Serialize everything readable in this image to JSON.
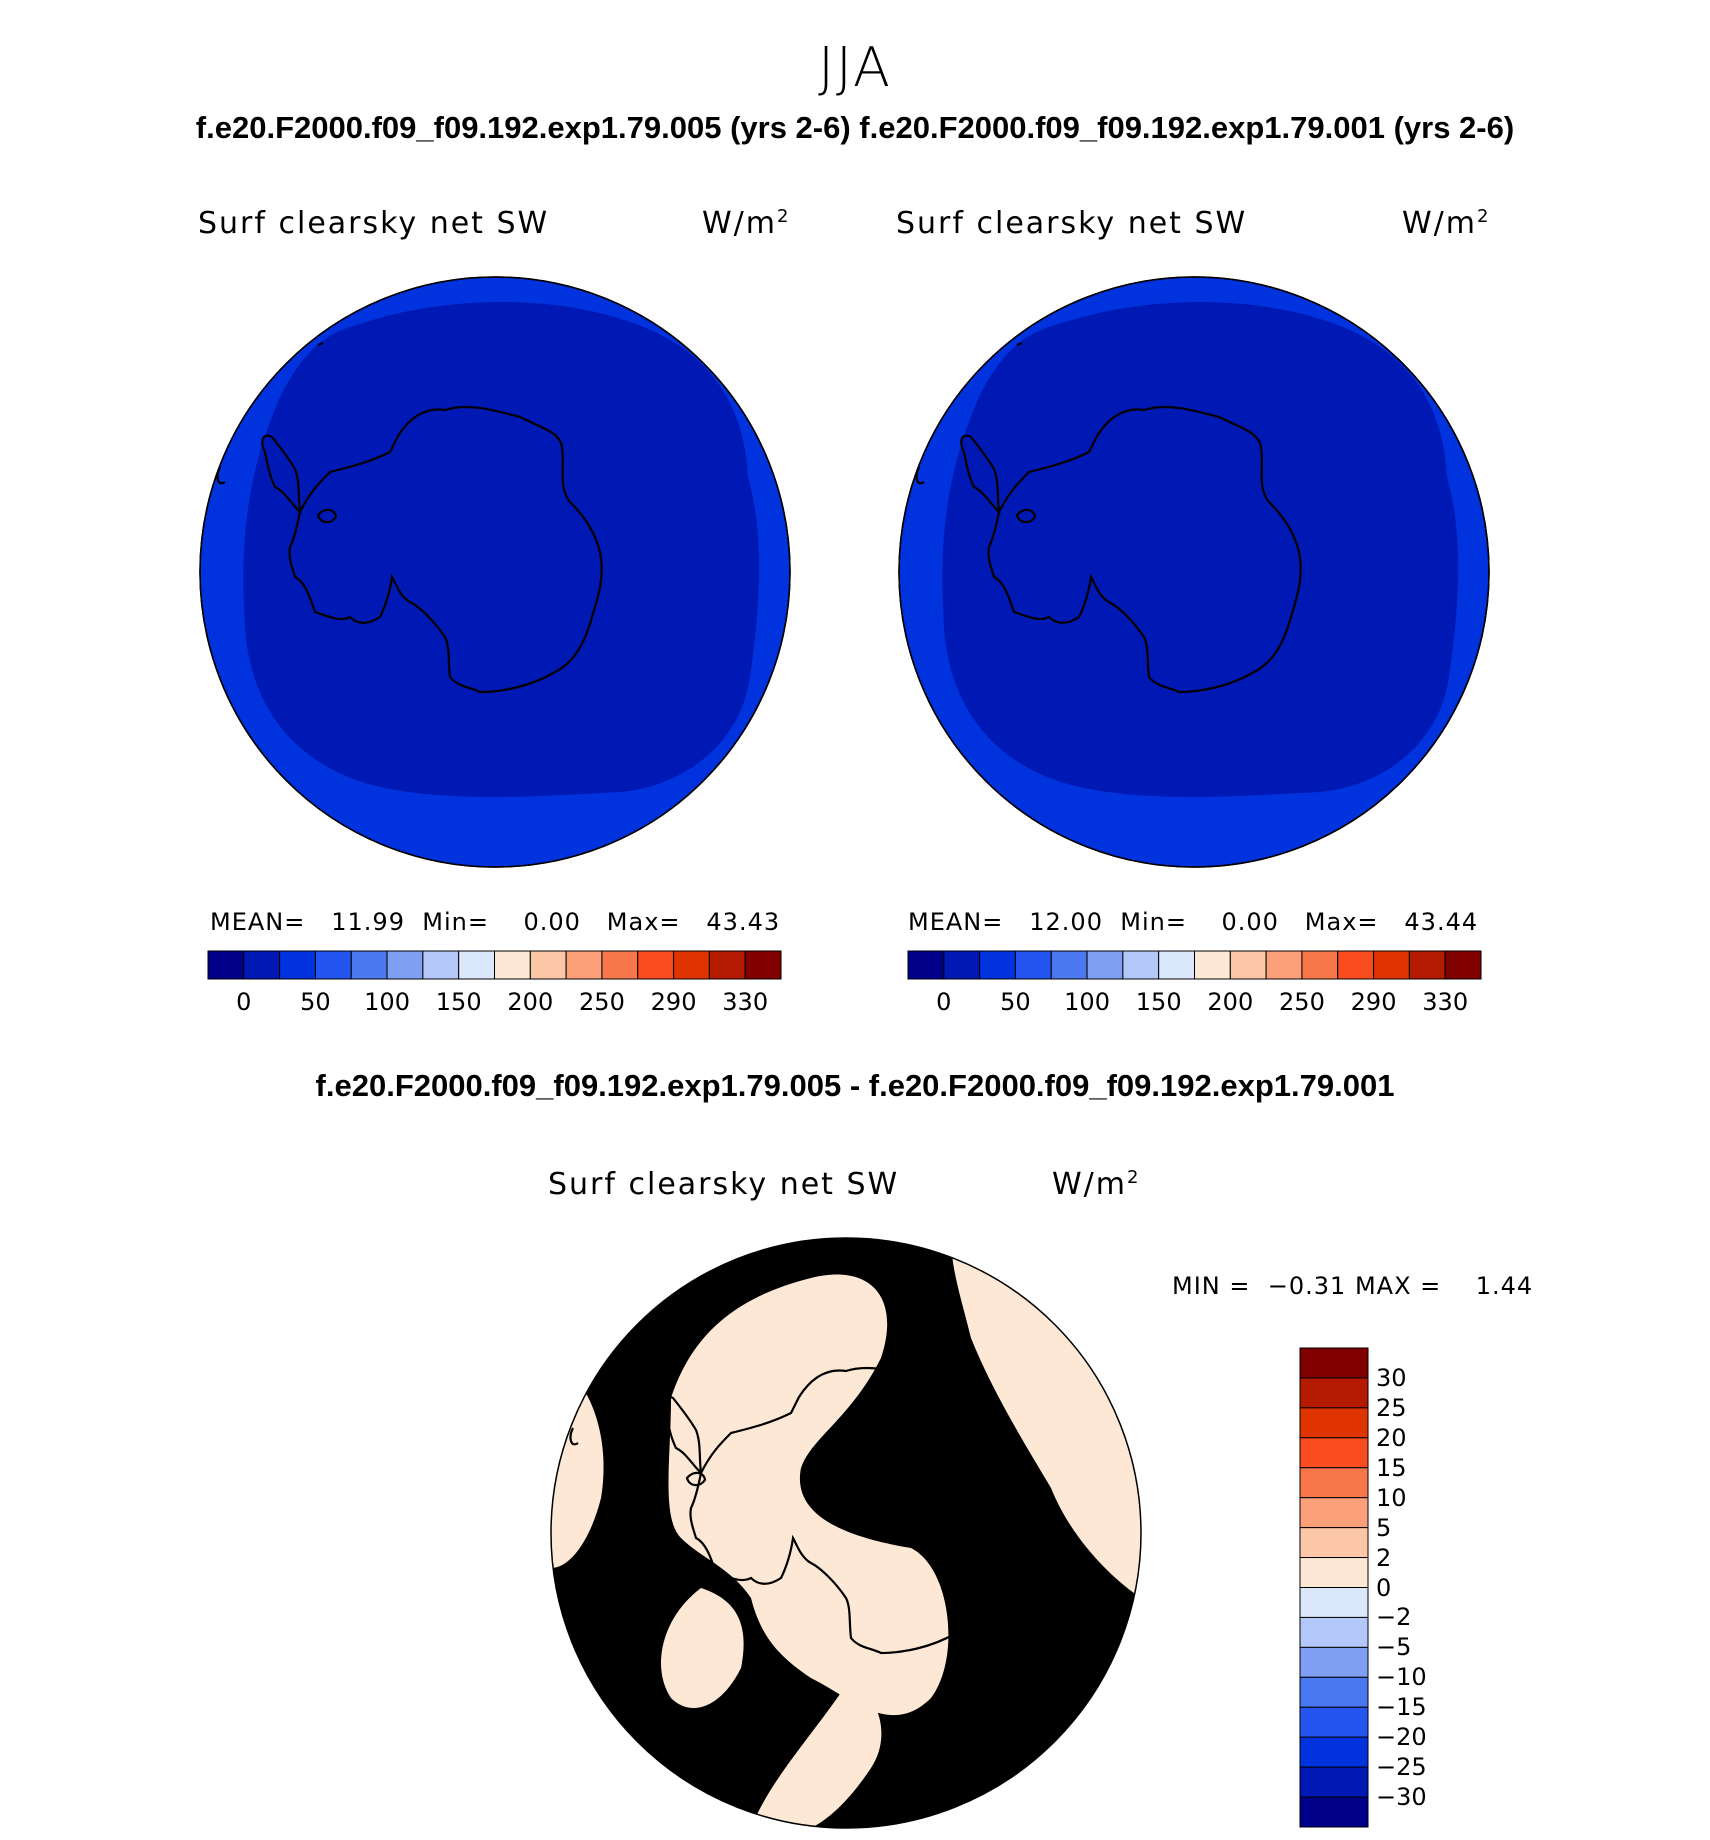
{
  "season": "JJA",
  "case_titles": "f.e20.F2000.f09_f09.192.exp1.79.005 (yrs 2-6) f.e20.F2000.f09_f09.192.exp1.79.001 (yrs 2-6)",
  "diff_title": "f.e20.F2000.f09_f09.192.exp1.79.005 - f.e20.F2000.f09_f09.192.exp1.79.001",
  "variable": "Surf clearsky net SW",
  "units": "W/m",
  "units_exp": "2",
  "panels": [
    {
      "mean": "11.99",
      "min": "0.00",
      "max": "43.43"
    },
    {
      "mean": "12.00",
      "min": "0.00",
      "max": "43.44"
    }
  ],
  "labels": {
    "mean": "MEAN=",
    "min": "Min=",
    "max": "Max=",
    "dmin": "MIN =",
    "dmax": "MAX ="
  },
  "diff_stats": {
    "min": "−0.31",
    "max": "1.44"
  },
  "abs_colorbar": {
    "colors": [
      "#00008b",
      "#0019b4",
      "#0033dd",
      "#2455ee",
      "#4a78f0",
      "#7f9ff5",
      "#b3c8f8",
      "#dbe8fb",
      "#fde8d5",
      "#fcc7a7",
      "#fca07a",
      "#f8774a",
      "#fa4d1f",
      "#df3400",
      "#b31a00",
      "#800000"
    ],
    "ticks": [
      "0",
      "50",
      "100",
      "150",
      "200",
      "250",
      "290",
      "330"
    ]
  },
  "diff_colorbar": {
    "colors": [
      "#800000",
      "#b31a00",
      "#df3400",
      "#fa4d1f",
      "#f8774a",
      "#fca07a",
      "#fcc7a7",
      "#fde8d5",
      "#dbe8fb",
      "#b3c8f8",
      "#7f9ff5",
      "#4a78f0",
      "#2455ee",
      "#0033dd",
      "#0019b4",
      "#00008b"
    ],
    "ticks": [
      "30",
      "25",
      "20",
      "15",
      "10",
      "5",
      "2",
      "0",
      "−2",
      "−5",
      "−10",
      "−15",
      "−20",
      "−25",
      "−30"
    ]
  },
  "map_colors": {
    "outer_ring": "#0033dd",
    "inner": "#0019b4",
    "diff_pos": "#fde8d5",
    "diff_neg": "#dbe8fb"
  }
}
